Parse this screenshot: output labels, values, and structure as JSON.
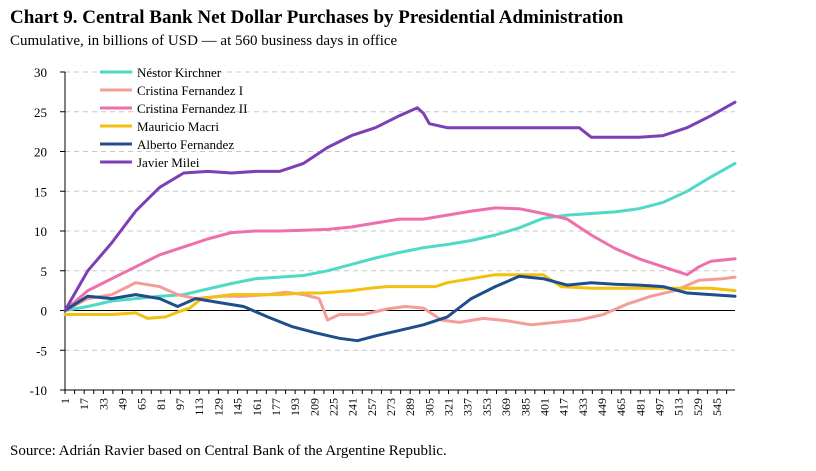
{
  "title": "Chart 9. Central Bank Net Dollar Purchases by Presidential Administration",
  "subtitle": "Cumulative, in billions of USD — at 560 business days in office",
  "source": "Source: Adrián Ravier based on Central Bank of the Argentine Republic.",
  "chart_data": {
    "type": "line",
    "title": "Chart 9. Central Bank Net Dollar Purchases by Presidential Administration",
    "subtitle": "Cumulative, in billions of USD — at 560 business days in office",
    "xlabel": "",
    "ylabel": "",
    "xlim": [
      1,
      560
    ],
    "ylim": [
      -10,
      30
    ],
    "yticks": [
      -10,
      -5,
      0,
      5,
      10,
      15,
      20,
      25,
      30
    ],
    "xticks": [
      1,
      17,
      33,
      49,
      65,
      81,
      97,
      113,
      129,
      145,
      161,
      177,
      193,
      209,
      225,
      241,
      257,
      273,
      289,
      305,
      321,
      337,
      353,
      369,
      385,
      401,
      417,
      433,
      449,
      465,
      481,
      497,
      513,
      529,
      545
    ],
    "grid": "horizontal dashed",
    "legend_position": "top-left",
    "series": [
      {
        "name": "Néstor Kirchner",
        "color": "#4fd9c6",
        "x": [
          1,
          20,
          40,
          60,
          80,
          100,
          120,
          140,
          160,
          180,
          200,
          220,
          240,
          260,
          280,
          300,
          320,
          340,
          360,
          380,
          400,
          420,
          440,
          460,
          480,
          500,
          520,
          540,
          560
        ],
        "y": [
          0,
          0.5,
          1.2,
          1.5,
          1.8,
          2.0,
          2.7,
          3.4,
          4.0,
          4.2,
          4.4,
          5.0,
          5.8,
          6.6,
          7.3,
          7.9,
          8.3,
          8.8,
          9.5,
          10.4,
          11.6,
          12.0,
          12.2,
          12.4,
          12.8,
          13.6,
          15.0,
          16.8,
          18.5
        ]
      },
      {
        "name": "Cristina Fernandez I",
        "color": "#f49c98",
        "x": [
          1,
          20,
          40,
          60,
          80,
          95,
          110,
          130,
          150,
          170,
          185,
          200,
          213,
          220,
          230,
          250,
          270,
          285,
          300,
          315,
          330,
          350,
          370,
          390,
          410,
          430,
          450,
          470,
          490,
          510,
          530,
          550,
          560
        ],
        "y": [
          0,
          1.5,
          2.0,
          3.5,
          3.0,
          2.0,
          1.5,
          1.8,
          1.8,
          2.0,
          2.3,
          2.0,
          1.5,
          -1.2,
          -0.5,
          -0.5,
          0.2,
          0.5,
          0.3,
          -1.2,
          -1.5,
          -1.0,
          -1.3,
          -1.8,
          -1.5,
          -1.2,
          -0.5,
          0.8,
          1.8,
          2.5,
          3.8,
          4.0,
          4.2
        ]
      },
      {
        "name": "Cristina Fernandez II",
        "color": "#ee6fab",
        "x": [
          1,
          20,
          40,
          60,
          80,
          100,
          120,
          140,
          160,
          180,
          200,
          220,
          240,
          260,
          280,
          300,
          320,
          340,
          360,
          380,
          400,
          420,
          440,
          460,
          480,
          500,
          520,
          530,
          540,
          560
        ],
        "y": [
          0,
          2.5,
          4.0,
          5.5,
          7.0,
          8.0,
          9.0,
          9.8,
          10.0,
          10.0,
          10.1,
          10.2,
          10.5,
          11.0,
          11.5,
          11.5,
          12.0,
          12.5,
          12.9,
          12.8,
          12.2,
          11.5,
          9.5,
          7.8,
          6.5,
          5.5,
          4.5,
          5.5,
          6.2,
          6.5
        ]
      },
      {
        "name": "Mauricio Macri",
        "color": "#f2c10f",
        "x": [
          1,
          20,
          40,
          60,
          70,
          85,
          95,
          105,
          115,
          140,
          160,
          180,
          200,
          215,
          240,
          255,
          270,
          290,
          310,
          320,
          340,
          360,
          380,
          400,
          415,
          440,
          460,
          480,
          500,
          520,
          540,
          560
        ],
        "y": [
          -0.5,
          -0.5,
          -0.5,
          -0.3,
          -1.0,
          -0.8,
          -0.2,
          0.3,
          1.5,
          2.0,
          2.0,
          2.0,
          2.2,
          2.2,
          2.5,
          2.8,
          3.0,
          3.0,
          3.0,
          3.5,
          4.0,
          4.5,
          4.5,
          4.5,
          3.0,
          2.8,
          2.8,
          2.8,
          2.8,
          2.8,
          2.8,
          2.5
        ]
      },
      {
        "name": "Alberto Fernandez",
        "color": "#1f4e8c",
        "x": [
          1,
          20,
          40,
          60,
          80,
          95,
          110,
          130,
          150,
          170,
          190,
          210,
          230,
          245,
          260,
          280,
          300,
          320,
          340,
          360,
          380,
          400,
          420,
          440,
          460,
          480,
          500,
          520,
          540,
          560
        ],
        "y": [
          0,
          1.8,
          1.5,
          2.0,
          1.5,
          0.5,
          1.5,
          1.0,
          0.5,
          -0.8,
          -2.0,
          -2.8,
          -3.5,
          -3.8,
          -3.2,
          -2.5,
          -1.8,
          -0.8,
          1.5,
          3.0,
          4.3,
          4.0,
          3.2,
          3.5,
          3.3,
          3.2,
          3.0,
          2.2,
          2.0,
          1.8
        ]
      },
      {
        "name": "Javier Milei",
        "color": "#7c3fb5",
        "x": [
          1,
          20,
          40,
          60,
          80,
          100,
          120,
          140,
          160,
          180,
          200,
          220,
          240,
          260,
          280,
          295,
          300,
          305,
          320,
          340,
          360,
          380,
          400,
          420,
          430,
          440,
          460,
          480,
          500,
          520,
          540,
          560
        ],
        "y": [
          0,
          5.0,
          8.5,
          12.5,
          15.5,
          17.3,
          17.5,
          17.3,
          17.5,
          17.5,
          18.5,
          20.5,
          22.0,
          23.0,
          24.5,
          25.5,
          24.8,
          23.5,
          23.0,
          23.0,
          23.0,
          23.0,
          23.0,
          23.0,
          23.0,
          21.8,
          21.8,
          21.8,
          22.0,
          23.0,
          24.5,
          26.2
        ]
      }
    ]
  }
}
